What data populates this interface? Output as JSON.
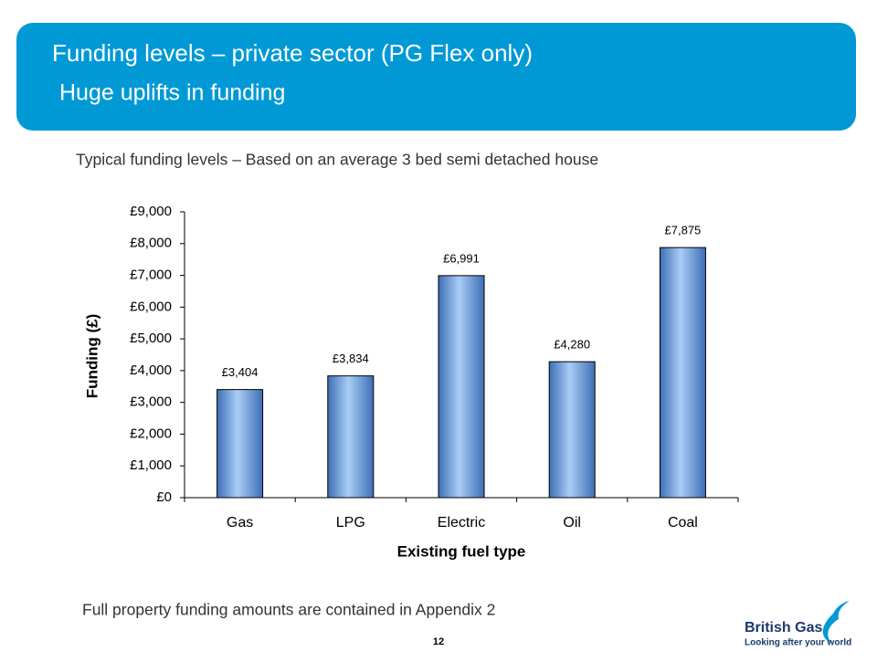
{
  "header": {
    "title": "Funding levels – private sector (PG Flex only)",
    "subtitle": "Huge uplifts in funding"
  },
  "chart_data": {
    "type": "bar",
    "title": "Typical funding levels – Based on an average 3 bed semi detached house",
    "x_label": "Existing fuel type",
    "y_label": "Funding (£)",
    "categories": [
      "Gas",
      "LPG",
      "Electric",
      "Oil",
      "Coal"
    ],
    "values": [
      3404,
      3834,
      6991,
      4280,
      7875
    ],
    "value_labels": [
      "£3,404",
      "£3,834",
      "£6,991",
      "£4,280",
      "£7,875"
    ],
    "color": "#7aaee8",
    "ylim": [
      0,
      9000
    ],
    "yticks": [
      {
        "value": 0,
        "label": "£0"
      },
      {
        "value": 1000,
        "label": "£1,000"
      },
      {
        "value": 2000,
        "label": "£2,000"
      },
      {
        "value": 3000,
        "label": "£3,000"
      },
      {
        "value": 4000,
        "label": "£4,000"
      },
      {
        "value": 5000,
        "label": "£5,000"
      },
      {
        "value": 6000,
        "label": "£6,000"
      },
      {
        "value": 7000,
        "label": "£7,000"
      },
      {
        "value": 8000,
        "label": "£8,000"
      },
      {
        "value": 9000,
        "label": "£9,000"
      }
    ],
    "grid": false
  },
  "footer": {
    "note": "Full property funding amounts are contained in Appendix 2",
    "page": "12"
  },
  "logo": {
    "name": "British Gas",
    "tagline": "Looking after your world"
  }
}
